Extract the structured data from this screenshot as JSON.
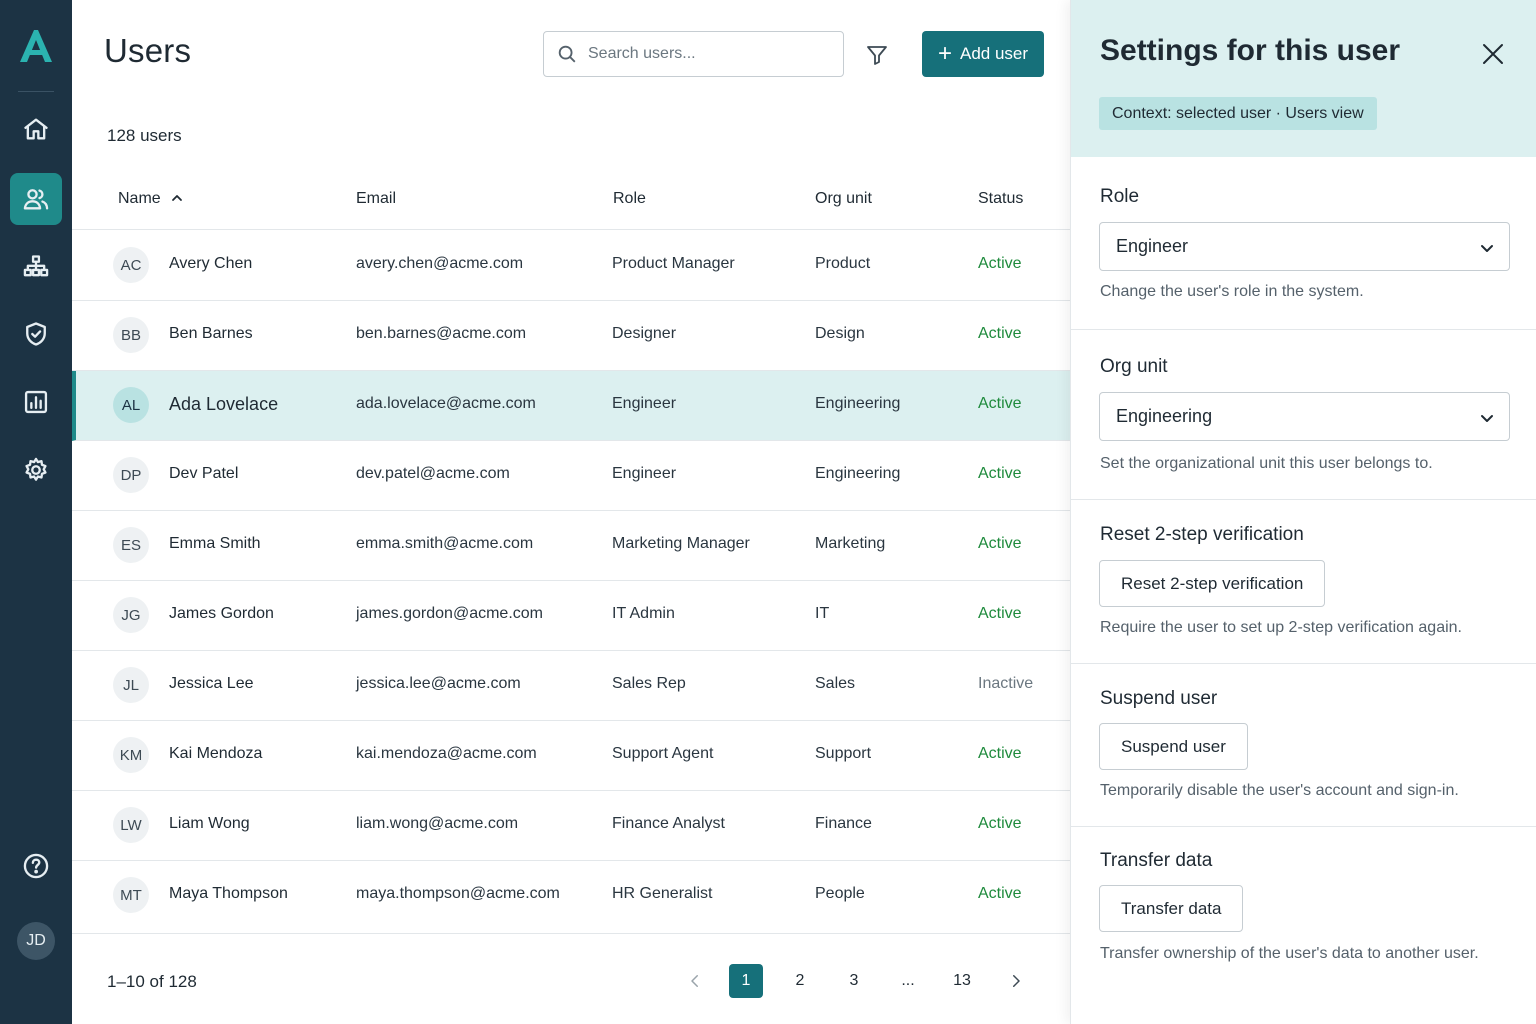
{
  "app": {
    "logo_letter": "A"
  },
  "nav": {
    "items": [
      {
        "name": "home",
        "icon": "home-icon"
      },
      {
        "name": "users",
        "icon": "users-icon",
        "active": true
      },
      {
        "name": "org",
        "icon": "org-chart-icon"
      },
      {
        "name": "security",
        "icon": "shield-icon"
      },
      {
        "name": "reports",
        "icon": "report-chart-icon"
      },
      {
        "name": "settings",
        "icon": "gear-icon"
      },
      {
        "name": "help",
        "icon": "help-icon"
      }
    ],
    "avatar_initials": "JD"
  },
  "header": {
    "title": "Users",
    "search_placeholder": "Search users...",
    "add_label": "Add user",
    "count": "128 users"
  },
  "table": {
    "columns": {
      "name": "Name",
      "email": "Email",
      "role": "Role",
      "org": "Org unit",
      "status": "Status"
    },
    "rows": [
      {
        "initials": "AC",
        "name": "Avery Chen",
        "email": "avery.chen@acme.com",
        "role": "Product Manager",
        "org": "Product",
        "status": "Active"
      },
      {
        "initials": "BB",
        "name": "Ben Barnes",
        "email": "ben.barnes@acme.com",
        "role": "Designer",
        "org": "Design",
        "status": "Active"
      },
      {
        "initials": "AL",
        "name": "Ada Lovelace",
        "email": "ada.lovelace@acme.com",
        "role": "Engineer",
        "org": "Engineering",
        "status": "Active",
        "selected": true
      },
      {
        "initials": "DP",
        "name": "Dev Patel",
        "email": "dev.patel@acme.com",
        "role": "Engineer",
        "org": "Engineering",
        "status": "Active"
      },
      {
        "initials": "ES",
        "name": "Emma Smith",
        "email": "emma.smith@acme.com",
        "role": "Marketing Manager",
        "org": "Marketing",
        "status": "Active"
      },
      {
        "initials": "JG",
        "name": "James Gordon",
        "email": "james.gordon@acme.com",
        "role": "IT Admin",
        "org": "IT",
        "status": "Active"
      },
      {
        "initials": "JL",
        "name": "Jessica Lee",
        "email": "jessica.lee@acme.com",
        "role": "Sales Rep",
        "org": "Sales",
        "status": "Inactive"
      },
      {
        "initials": "KM",
        "name": "Kai Mendoza",
        "email": "kai.mendoza@acme.com",
        "role": "Support Agent",
        "org": "Support",
        "status": "Active"
      },
      {
        "initials": "LW",
        "name": "Liam Wong",
        "email": "liam.wong@acme.com",
        "role": "Finance Analyst",
        "org": "Finance",
        "status": "Active"
      },
      {
        "initials": "MT",
        "name": "Maya Thompson",
        "email": "maya.thompson@acme.com",
        "role": "HR Generalist",
        "org": "People",
        "status": "Active"
      }
    ]
  },
  "pagination": {
    "info": "1–10 of 128",
    "pages": [
      "1",
      "2",
      "3",
      "...",
      "13"
    ],
    "current": "1"
  },
  "panel": {
    "title": "Settings for this user",
    "context": "Context: selected user · Users view",
    "role": {
      "label": "Role",
      "value": "Engineer",
      "helper": "Change the user's role in the system."
    },
    "org": {
      "label": "Org unit",
      "value": "Engineering",
      "helper": "Set the organizational unit this user belongs to."
    },
    "reset2sv": {
      "label": "Reset 2-step verification",
      "button": "Reset 2-step verification",
      "helper": "Require the user to set up 2-step verification again."
    },
    "suspend": {
      "label": "Suspend user",
      "button": "Suspend user",
      "helper": "Temporarily disable the user's account and sign-in."
    },
    "transfer": {
      "label": "Transfer data",
      "button": "Transfer data",
      "helper": "Transfer ownership of the user's data to another user."
    }
  },
  "colors": {
    "rail": "#1c3344",
    "accent": "#16707a",
    "active_status": "#1e8a3c",
    "selected_row": "#dcf0f0"
  }
}
